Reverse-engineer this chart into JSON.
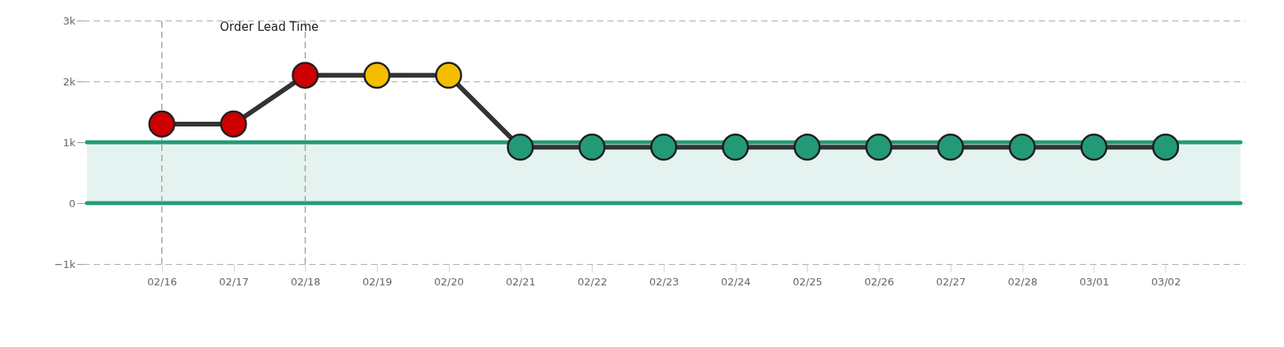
{
  "chart_data": {
    "type": "line",
    "title": "Order Lead Time",
    "categories": [
      "02/16",
      "02/17",
      "02/18",
      "02/19",
      "02/20",
      "02/21",
      "02/22",
      "02/23",
      "02/24",
      "02/25",
      "02/26",
      "02/27",
      "02/28",
      "03/01",
      "03/02"
    ],
    "series": [
      {
        "color": "#333333",
        "values": [
          1300,
          1300,
          2100,
          2100,
          2100,
          920,
          920,
          920,
          920,
          920,
          920,
          920,
          920,
          920,
          920
        ],
        "colors": [
          "#cc0000",
          "#cc0000",
          "#cc0000",
          "#f5bd00",
          "#f5bd00",
          "#229a78",
          "#229a78",
          "#229a78",
          "#229a78",
          "#229a78",
          "#229a78",
          "#229a78",
          "#229a78",
          "#229a78",
          "#229a78"
        ]
      }
    ],
    "ylim": [
      -1000,
      3000
    ],
    "yticks": [
      {
        "value": -1000,
        "label": "−1k"
      },
      0,
      {
        "value": 1000,
        "label": "1k"
      },
      {
        "value": 2000,
        "label": "2k"
      },
      {
        "value": 3000,
        "label": "3k"
      }
    ],
    "bands": [
      {
        "axis": "y",
        "from": 0,
        "to": 1000,
        "color": "#229a78"
      }
    ],
    "ref_lines": [
      {
        "axis": "x",
        "value": "02/16",
        "color": "#999999",
        "line_style": "dashed"
      },
      {
        "axis": "x",
        "value": "02/18",
        "color": "#999999",
        "line_style": "dashed"
      }
    ],
    "grid": "y",
    "legend": false,
    "marker": "circle",
    "line_style": "solid"
  }
}
